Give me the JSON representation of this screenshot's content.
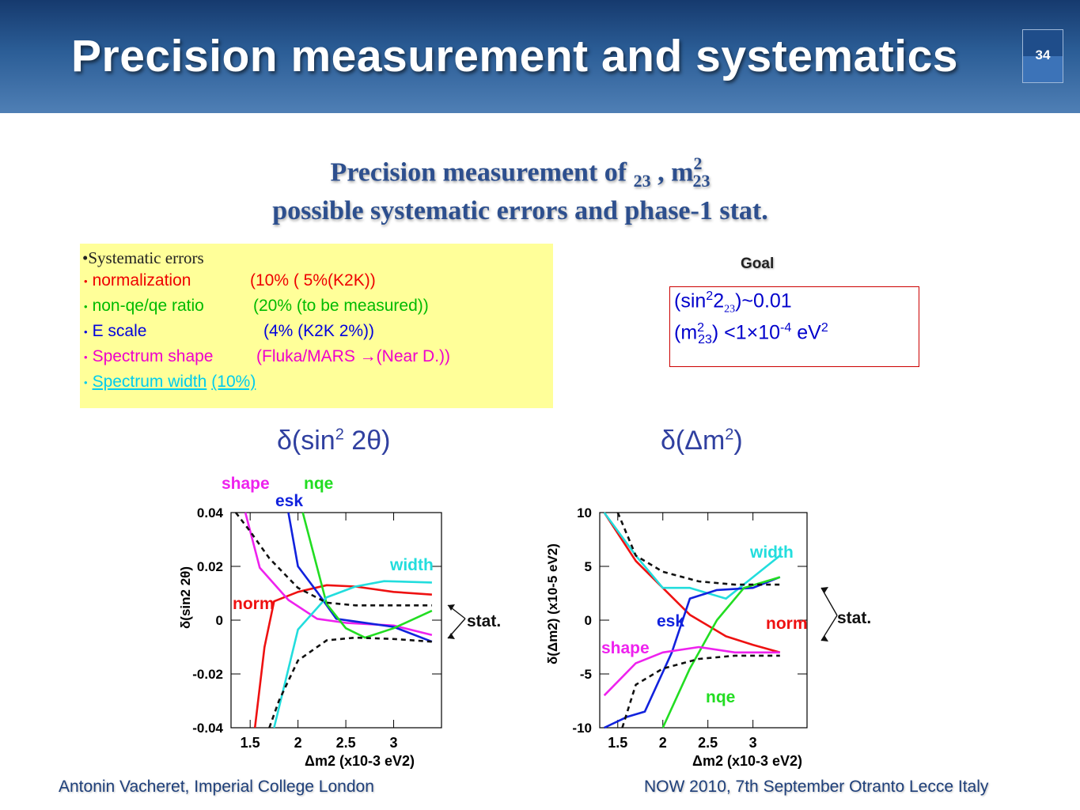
{
  "slide": {
    "title": "Precision measurement and systematics",
    "number": "34"
  },
  "subtitle": {
    "line1_a": "Precision measurement of ",
    "theta_glyph": "",
    "sub23_a": "23",
    "line1_sep": " , ",
    "dm_glyph": "",
    "m_text": "m",
    "sup2": "2",
    "sub23_b": "23",
    "line2": "possible systematic errors and phase-1 stat."
  },
  "systematics": {
    "header": "•Systematic errors",
    "items": [
      {
        "label": "normalization",
        "detail": "(10% ( 5%(K2K))",
        "color": "#ee0000"
      },
      {
        "label": "non-qe/qe ratio",
        "detail": "(20% (to be measured))",
        "color": "#00bb00"
      },
      {
        "label": "E scale",
        "detail": "(4% (K2K 2%))",
        "color": "#0000dd"
      },
      {
        "label": "Spectrum shape",
        "detail": "(Fluka/MARS →(Near D.))",
        "color": "#ee00cc"
      },
      {
        "label": "Spectrum width",
        "detail": "(10%)",
        "color": "#00ccee"
      }
    ]
  },
  "goal": {
    "label": "Goal",
    "line1_a": "(sin",
    "line1_sup": "2",
    "line1_b": "2",
    "line1_sub": "23",
    "line1_c": ")~0.01",
    "line2_a": "(",
    "line2_m": "m",
    "line2_sup": "2",
    "line2_sub": "23",
    "line2_b": ")   <1×10",
    "line2_exp": "-4",
    "line2_unit": " eV",
    "line2_unit_sup": "2"
  },
  "footer": {
    "left": "Antonin Vacheret, Imperial College London",
    "right": "NOW 2010, 7th September Otranto Lecce Italy"
  },
  "colors": {
    "norm": "#ee1111",
    "nqe": "#22dd22",
    "esk": "#1122dd",
    "shape": "#ee22ee",
    "width": "#22dddd",
    "stat": "#111111"
  },
  "chart_data": [
    {
      "type": "line",
      "title": "δ(sin2 2θ)",
      "title_delta": "δ(sin",
      "title_sup": "2",
      "title_tail": " 2θ)",
      "ylabel": "δ(sin2 2θ)",
      "xlabel": "Δm2 (x10-3 eV2)",
      "xlabel_a": "Δm",
      "xlabel_sup": "2",
      "xlabel_b": " (x10",
      "xlabel_exp": "-3",
      "xlabel_c": " eV",
      "xlabel_sup2": "2",
      "ylabel_parts": {
        "a": "δ(sin",
        "sup": "2",
        "b": " 2θ)"
      },
      "xlim": [
        1.3,
        3.5
      ],
      "ylim": [
        -0.04,
        0.04
      ],
      "xticks": [
        1.5,
        2,
        2.5,
        3
      ],
      "xtick_labels": [
        "1.5",
        "2",
        "2.5",
        "3"
      ],
      "yticks": [
        -0.04,
        -0.02,
        0,
        0.02,
        0.04
      ],
      "ytick_labels": [
        "-0.04",
        "-0.02",
        "0",
        "0.02",
        "0.04"
      ],
      "series_labels": {
        "shape": "shape",
        "nqe": "nqe",
        "esk": "esk",
        "norm": "norm",
        "width": "width",
        "stat": "stat."
      },
      "series": [
        {
          "name": "norm",
          "x": [
            1.55,
            1.65,
            1.75,
            2.0,
            2.3,
            2.6,
            3.0,
            3.4
          ],
          "y": [
            -0.04,
            -0.01,
            0.007,
            0.0105,
            0.013,
            0.0125,
            0.0105,
            0.0095
          ]
        },
        {
          "name": "shape",
          "x": [
            1.45,
            1.6,
            1.9,
            2.2,
            2.5,
            3.0,
            3.4
          ],
          "y": [
            0.04,
            0.0195,
            0.0075,
            0.0005,
            -0.001,
            -0.002,
            -0.0055
          ]
        },
        {
          "name": "esk",
          "x": [
            1.9,
            2.0,
            2.2,
            2.4,
            2.6,
            3.0,
            3.4
          ],
          "y": [
            0.04,
            0.02,
            0.0105,
            0.0005,
            -0.0005,
            -0.0025,
            -0.008
          ]
        },
        {
          "name": "nqe",
          "x": [
            2.05,
            2.3,
            2.5,
            2.7,
            3.0,
            3.4
          ],
          "y": [
            0.04,
            0.006,
            -0.003,
            -0.0065,
            -0.003,
            0.0035
          ]
        },
        {
          "name": "width",
          "x": [
            1.75,
            2.0,
            2.3,
            2.6,
            2.9,
            3.4
          ],
          "y": [
            -0.04,
            -0.0035,
            0.0085,
            0.0125,
            0.0145,
            0.014
          ]
        },
        {
          "name": "stat+",
          "x": [
            1.35,
            1.5,
            1.7,
            2.0,
            2.3,
            2.6,
            3.0,
            3.4
          ],
          "y": [
            0.04,
            0.033,
            0.023,
            0.012,
            0.0065,
            0.0055,
            0.0055,
            0.0055
          ]
        },
        {
          "name": "stat-",
          "x": [
            1.7,
            1.8,
            2.0,
            2.3,
            2.6,
            3.0,
            3.4
          ],
          "y": [
            -0.04,
            -0.03,
            -0.015,
            -0.0075,
            -0.0065,
            -0.007,
            -0.008
          ]
        }
      ]
    },
    {
      "type": "line",
      "title": "δ(Δm2)",
      "title_delta": "δ(Δm",
      "title_sup": "2",
      "title_tail": ")",
      "ylabel": "δ(Δm2) (x10-5 eV2)",
      "xlabel": "Δm2 (x10-3 eV2)",
      "xlabel_a": "Δm",
      "xlabel_sup": "2",
      "xlabel_b": " (x10",
      "xlabel_exp": "-3",
      "xlabel_c": " eV",
      "xlabel_sup2": "2",
      "ylabel_parts": {
        "a": "δ(Δm",
        "sup": "2",
        "b": ") (x10",
        "exp": "-5",
        "c": " eV",
        "sup2": "2",
        "d": ")"
      },
      "xlim": [
        1.3,
        3.6
      ],
      "ylim": [
        -10,
        10
      ],
      "xticks": [
        1.5,
        2,
        2.5,
        3
      ],
      "xtick_labels": [
        "1.5",
        "2",
        "2.5",
        "3"
      ],
      "yticks": [
        -10,
        -5,
        0,
        5,
        10
      ],
      "ytick_labels": [
        "-10",
        "-5",
        "0",
        "5",
        "10"
      ],
      "series_labels": {
        "width": "width",
        "esk": "esk",
        "norm": "norm",
        "shape": "shape",
        "nqe": "nqe",
        "stat": "stat."
      },
      "series": [
        {
          "name": "norm",
          "x": [
            1.35,
            1.7,
            2.0,
            2.3,
            2.7,
            3.0,
            3.3
          ],
          "y": [
            10,
            5.5,
            3.0,
            0.5,
            -1.5,
            -2.3,
            -3.0
          ]
        },
        {
          "name": "width",
          "x": [
            1.35,
            1.7,
            2.0,
            2.3,
            2.7,
            3.0,
            3.3
          ],
          "y": [
            10,
            6.0,
            3.0,
            3.0,
            2.0,
            4.0,
            6.0
          ]
        },
        {
          "name": "esk",
          "x": [
            1.35,
            1.6,
            1.8,
            2.1,
            2.3,
            2.6,
            3.0,
            3.3
          ],
          "y": [
            -10,
            -9.0,
            -8.5,
            -3.0,
            2.0,
            2.8,
            3.0,
            4.0
          ]
        },
        {
          "name": "nqe",
          "x": [
            2.0,
            2.3,
            2.6,
            2.9,
            3.3
          ],
          "y": [
            -10,
            -4.5,
            0.0,
            3.0,
            4.0
          ]
        },
        {
          "name": "shape",
          "x": [
            1.35,
            1.7,
            2.0,
            2.4,
            2.8,
            3.3
          ],
          "y": [
            -7.0,
            -4.0,
            -3.0,
            -2.5,
            -3.0,
            -3.0
          ]
        },
        {
          "name": "stat+",
          "x": [
            1.5,
            1.7,
            2.0,
            2.4,
            2.8,
            3.3
          ],
          "y": [
            10,
            6.0,
            4.5,
            3.6,
            3.3,
            3.3
          ]
        },
        {
          "name": "stat-",
          "x": [
            1.55,
            1.7,
            2.0,
            2.4,
            2.8,
            3.3
          ],
          "y": [
            -10,
            -6.0,
            -4.5,
            -3.6,
            -3.3,
            -3.3
          ]
        }
      ]
    }
  ]
}
